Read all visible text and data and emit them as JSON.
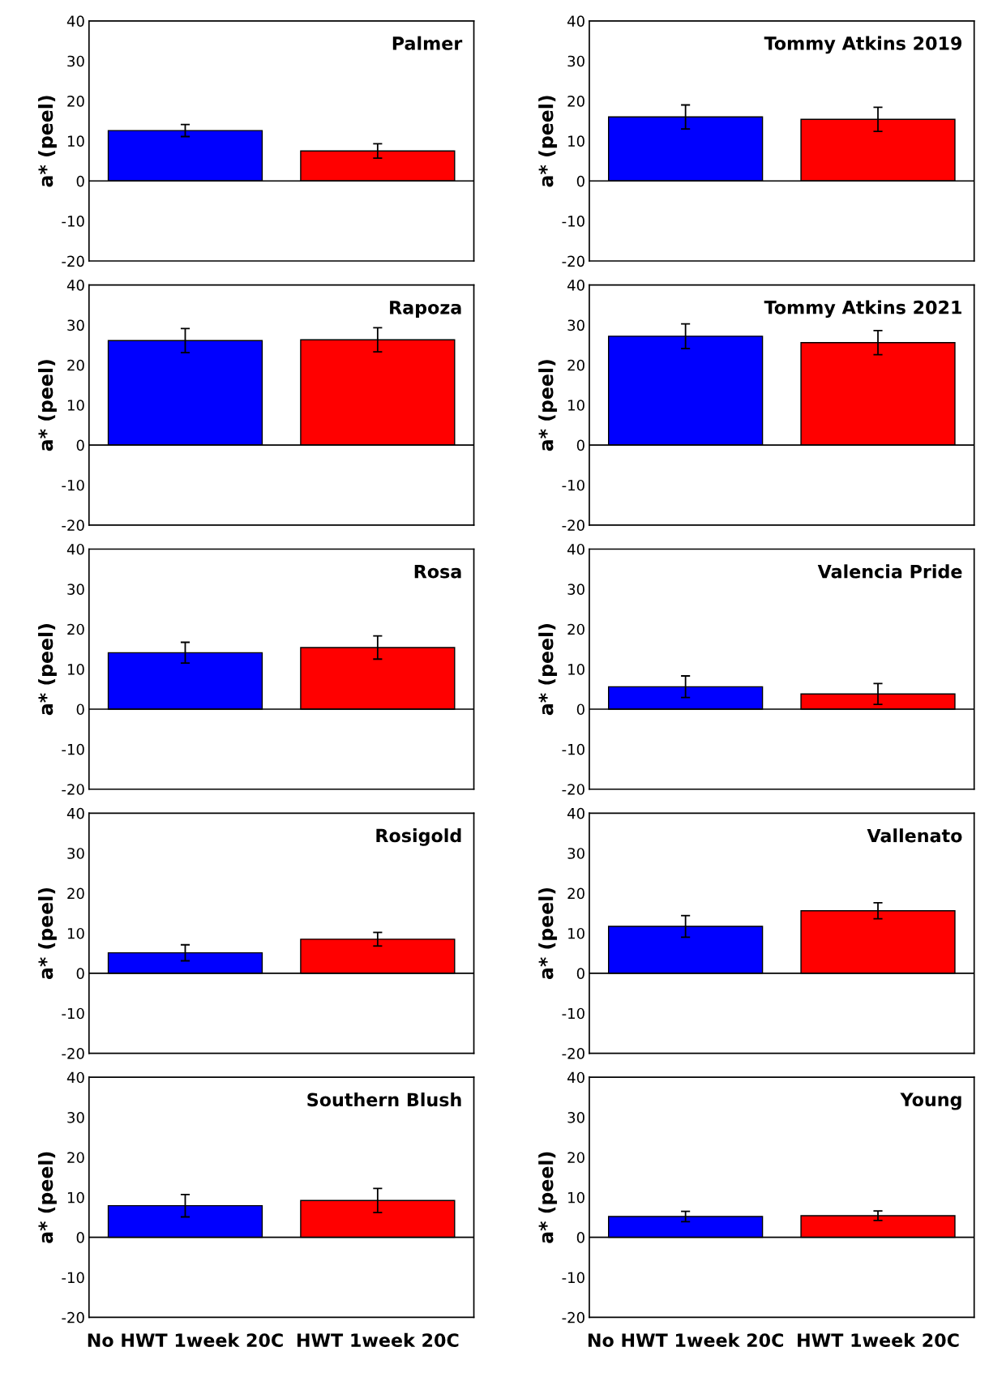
{
  "chart_data": [
    {
      "type": "bar",
      "title": "Palmer",
      "ylabel": "a* (peel)",
      "categories": [
        null,
        null
      ],
      "ref_lines": [
        {
          "axis": "y",
          "value": 0,
          "color": "#000000"
        }
      ],
      "values": [
        12.6,
        7.5
      ],
      "errors": [
        1.5,
        1.8
      ],
      "colors": [
        "#0000ff",
        "#ff0000"
      ],
      "ylim": [
        -20,
        40
      ],
      "yticks": [
        -20,
        -10,
        0,
        10,
        20,
        30,
        40
      ],
      "tick_labels": "y",
      "grid": false,
      "legend": false
    },
    {
      "type": "bar",
      "title": "Rapoza",
      "ylabel": "a* (peel)",
      "categories": [
        null,
        null
      ],
      "ref_lines": [
        {
          "axis": "y",
          "value": 0,
          "color": "#000000"
        }
      ],
      "values": [
        26.1,
        26.3
      ],
      "errors": [
        3.0,
        3.0
      ],
      "colors": [
        "#0000ff",
        "#ff0000"
      ],
      "ylim": [
        -20,
        40
      ],
      "yticks": [
        -20,
        -10,
        0,
        10,
        20,
        30,
        40
      ],
      "tick_labels": "y",
      "grid": false,
      "legend": false
    },
    {
      "type": "bar",
      "title": "Rosa",
      "ylabel": "a* (peel)",
      "categories": [
        null,
        null
      ],
      "ref_lines": [
        {
          "axis": "y",
          "value": 0,
          "color": "#000000"
        }
      ],
      "values": [
        14.1,
        15.4
      ],
      "errors": [
        2.6,
        2.9
      ],
      "colors": [
        "#0000ff",
        "#ff0000"
      ],
      "ylim": [
        -20,
        40
      ],
      "yticks": [
        -20,
        -10,
        0,
        10,
        20,
        30,
        40
      ],
      "tick_labels": "y",
      "grid": false,
      "legend": false
    },
    {
      "type": "bar",
      "title": "Rosigold",
      "ylabel": "a* (peel)",
      "categories": [
        null,
        null
      ],
      "ref_lines": [
        {
          "axis": "y",
          "value": 0,
          "color": "#000000"
        }
      ],
      "values": [
        5.1,
        8.5
      ],
      "errors": [
        2.0,
        1.7
      ],
      "colors": [
        "#0000ff",
        "#ff0000"
      ],
      "ylim": [
        -20,
        40
      ],
      "yticks": [
        -20,
        -10,
        0,
        10,
        20,
        30,
        40
      ],
      "tick_labels": "y",
      "grid": false,
      "legend": false
    },
    {
      "type": "bar",
      "title": "Southern Blush",
      "ylabel": "a* (peel)",
      "categories": [
        "No HWT 1week 20C",
        "HWT 1week 20C"
      ],
      "ref_lines": [
        {
          "axis": "y",
          "value": 0,
          "color": "#000000"
        }
      ],
      "values": [
        7.9,
        9.2
      ],
      "errors": [
        2.8,
        3.0
      ],
      "colors": [
        "#0000ff",
        "#ff0000"
      ],
      "ylim": [
        -20,
        40
      ],
      "yticks": [
        -20,
        -10,
        0,
        10,
        20,
        30,
        40
      ],
      "grid": false,
      "legend": false
    },
    {
      "type": "bar",
      "title": "Tommy Atkins 2019",
      "ylabel": "a* (peel)",
      "categories": [
        null,
        null
      ],
      "ref_lines": [
        {
          "axis": "y",
          "value": 0,
          "color": "#000000"
        }
      ],
      "values": [
        16.0,
        15.4
      ],
      "errors": [
        3.0,
        3.0
      ],
      "colors": [
        "#0000ff",
        "#ff0000"
      ],
      "ylim": [
        -20,
        40
      ],
      "yticks": [
        -20,
        -10,
        0,
        10,
        20,
        30,
        40
      ],
      "tick_labels": "y",
      "grid": false,
      "legend": false
    },
    {
      "type": "bar",
      "title": "Tommy Atkins 2021",
      "ylabel": "a* (peel)",
      "categories": [
        null,
        null
      ],
      "ref_lines": [
        {
          "axis": "y",
          "value": 0,
          "color": "#000000"
        }
      ],
      "values": [
        27.2,
        25.6
      ],
      "errors": [
        3.1,
        3.0
      ],
      "colors": [
        "#0000ff",
        "#ff0000"
      ],
      "ylim": [
        -20,
        40
      ],
      "yticks": [
        -20,
        -10,
        0,
        10,
        20,
        30,
        40
      ],
      "tick_labels": "y",
      "grid": false,
      "legend": false
    },
    {
      "type": "bar",
      "title": "Valencia Pride",
      "ylabel": "a* (peel)",
      "categories": [
        null,
        null
      ],
      "ref_lines": [
        {
          "axis": "y",
          "value": 0,
          "color": "#000000"
        }
      ],
      "values": [
        5.6,
        3.8
      ],
      "errors": [
        2.7,
        2.6
      ],
      "colors": [
        "#0000ff",
        "#ff0000"
      ],
      "ylim": [
        -20,
        40
      ],
      "yticks": [
        -20,
        -10,
        0,
        10,
        20,
        30,
        40
      ],
      "tick_labels": "y",
      "grid": false,
      "legend": false
    },
    {
      "type": "bar",
      "title": "Vallenato",
      "ylabel": "a* (peel)",
      "categories": [
        null,
        null
      ],
      "ref_lines": [
        {
          "axis": "y",
          "value": 0,
          "color": "#000000"
        }
      ],
      "values": [
        11.7,
        15.6
      ],
      "errors": [
        2.7,
        2.0
      ],
      "colors": [
        "#0000ff",
        "#ff0000"
      ],
      "ylim": [
        -20,
        40
      ],
      "yticks": [
        -20,
        -10,
        0,
        10,
        20,
        30,
        40
      ],
      "tick_labels": "y",
      "grid": false,
      "legend": false
    },
    {
      "type": "bar",
      "title": "Young",
      "ylabel": "a* (peel)",
      "categories": [
        "No HWT 1week 20C",
        "HWT 1week 20C"
      ],
      "ref_lines": [
        {
          "axis": "y",
          "value": 0,
          "color": "#000000"
        }
      ],
      "values": [
        5.2,
        5.4
      ],
      "errors": [
        1.3,
        1.2
      ],
      "colors": [
        "#0000ff",
        "#ff0000"
      ],
      "ylim": [
        -20,
        40
      ],
      "yticks": [
        -20,
        -10,
        0,
        10,
        20,
        30,
        40
      ],
      "grid": false,
      "legend": false
    }
  ]
}
